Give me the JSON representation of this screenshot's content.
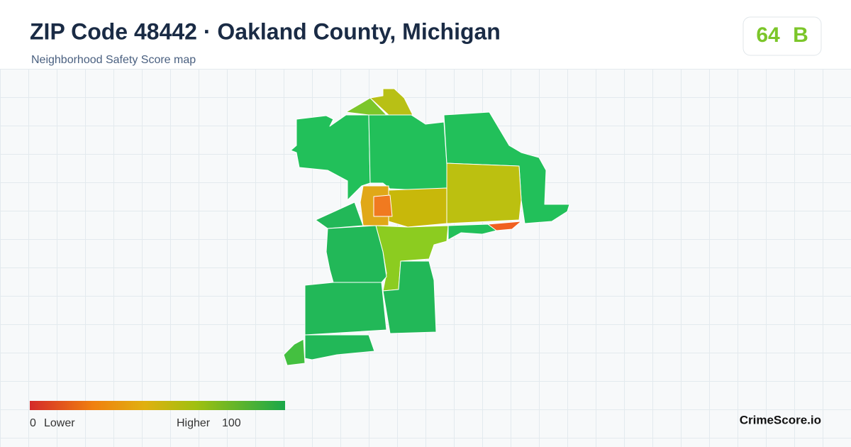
{
  "header": {
    "title": "ZIP Code 48442 · Oakland County, Michigan",
    "subtitle": "Neighborhood Safety Score map"
  },
  "score": {
    "value": "64",
    "grade": "B"
  },
  "legend": {
    "min": 0,
    "min_label": "Lower",
    "max_label": "Higher",
    "max": 100
  },
  "brand": "CrimeScore.io"
}
